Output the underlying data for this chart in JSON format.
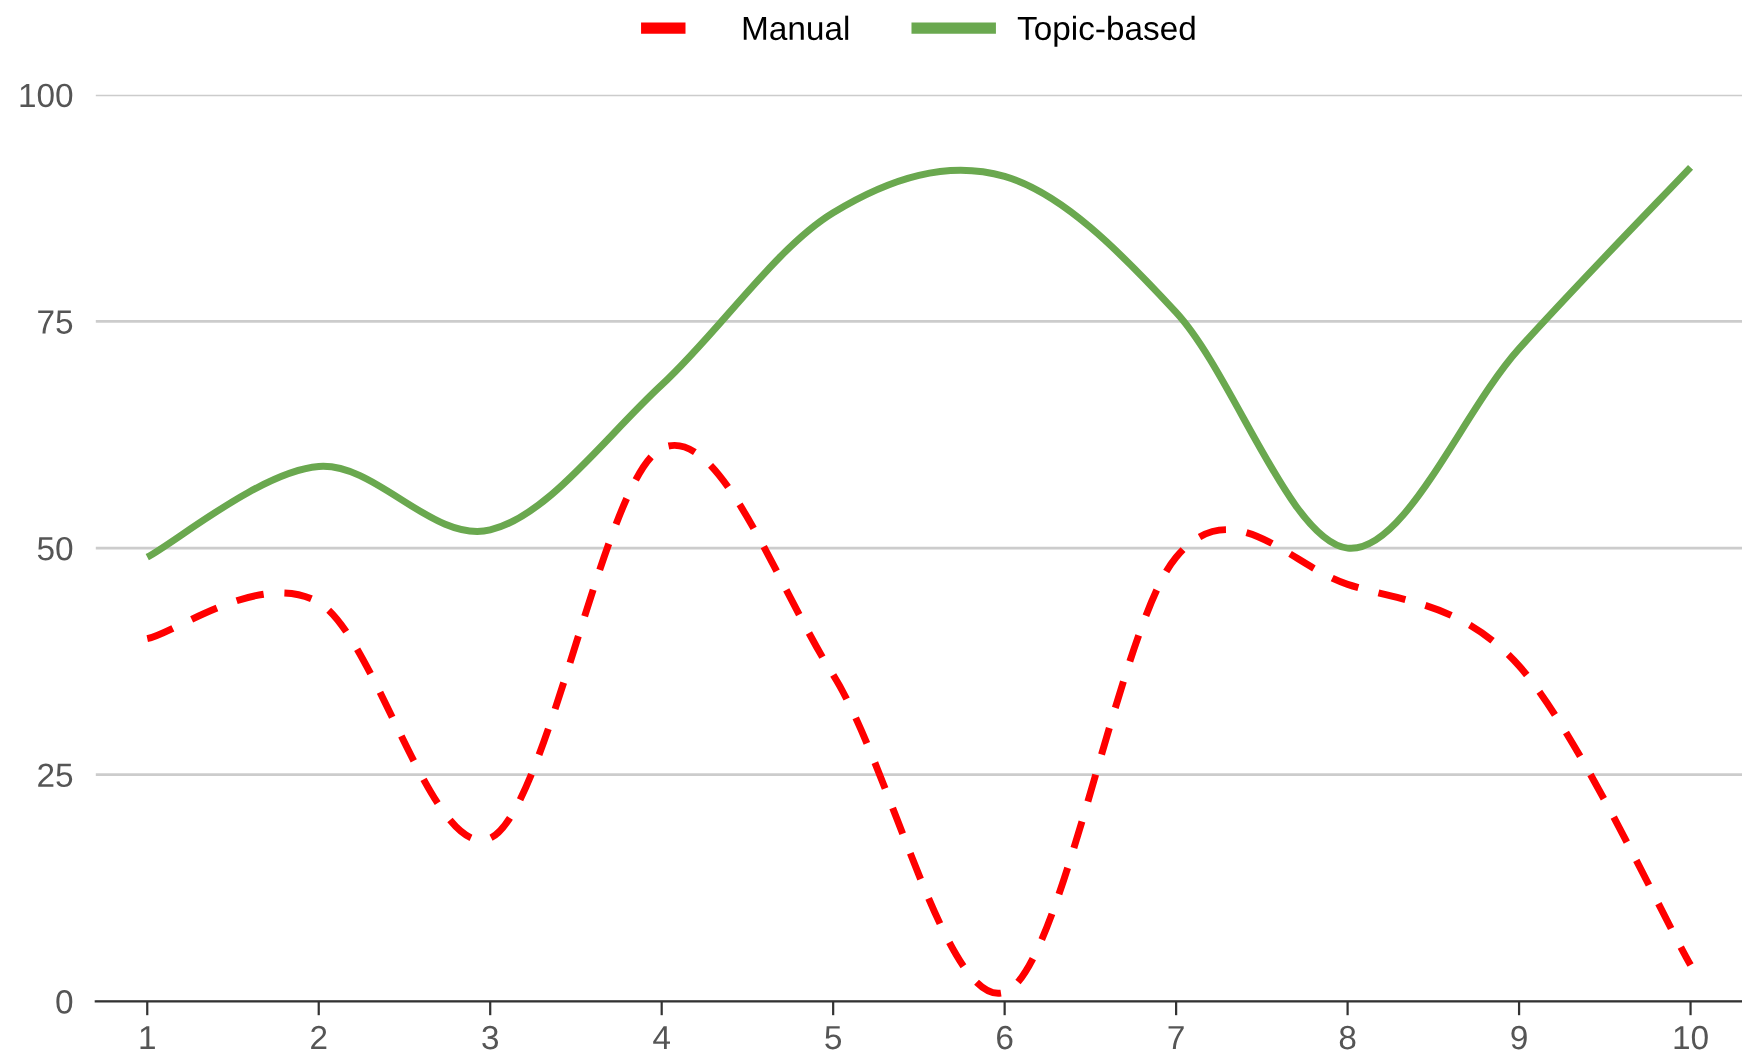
{
  "chart_data": {
    "type": "line",
    "categories": [
      "1",
      "2",
      "3",
      "4",
      "5",
      "6",
      "7",
      "8",
      "9",
      "10"
    ],
    "series": [
      {
        "name": "Manual",
        "color": "#ff0000",
        "line_style": "dashed",
        "values": [
          40,
          44,
          18,
          61,
          36,
          1,
          49,
          46,
          37,
          4
        ]
      },
      {
        "name": "Topic-based",
        "color": "#6aa84f",
        "line_style": "solid",
        "values": [
          49,
          59,
          52,
          68,
          87,
          91,
          76,
          50,
          72,
          92
        ]
      }
    ],
    "ylim": [
      0,
      100
    ],
    "yticks": [
      0,
      25,
      50,
      75,
      100
    ],
    "grid": "y",
    "legend": "top",
    "marker": "none"
  }
}
